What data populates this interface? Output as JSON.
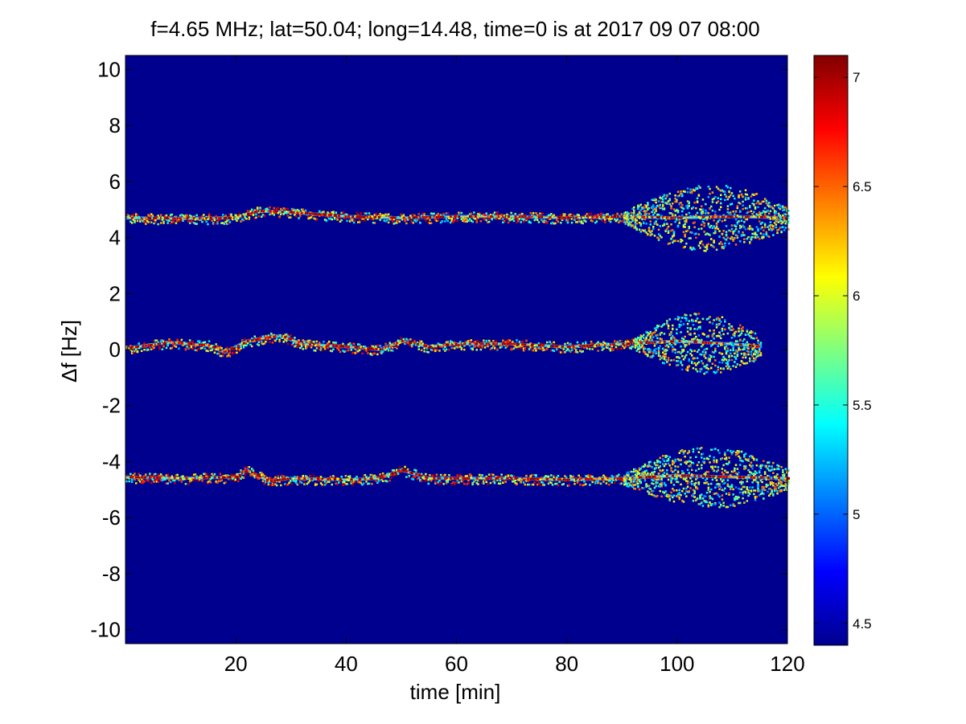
{
  "chart_data": {
    "type": "heatmap",
    "title": "f=4.65 MHz;  lat=50.04; long=14.48, time=0 is at 2017 09 07 08:00",
    "xlabel": "time [min]",
    "ylabel": "Δf [Hz]",
    "xlim": [
      0,
      120
    ],
    "ylim": [
      -10.5,
      10.5
    ],
    "x_ticks": [
      20,
      40,
      60,
      80,
      100,
      120
    ],
    "x_tick_labels": [
      "20",
      "40",
      "60",
      "80",
      "100",
      "120"
    ],
    "y_ticks": [
      10,
      8,
      6,
      4,
      2,
      0,
      -2,
      -4,
      -6,
      -8,
      -10
    ],
    "y_tick_labels": [
      "10",
      "8",
      "6",
      "4",
      "2",
      "0",
      "-2",
      "-4",
      "-6",
      "-8",
      "-10"
    ],
    "colormap": "jet",
    "background_color": "#00008f",
    "colorbar": {
      "clim": [
        4.4,
        7.1
      ],
      "ticks": [
        4.5,
        5,
        5.5,
        6,
        6.5,
        7
      ],
      "tick_labels": [
        "4.5",
        "5",
        "5.5",
        "6",
        "6.5",
        "7"
      ]
    },
    "traces": [
      {
        "center_hz": 4.7,
        "onset_spread_min": 90,
        "max_spread_hz": 1.0,
        "path": [
          [
            0,
            4.7
          ],
          [
            10,
            4.68
          ],
          [
            20,
            4.7
          ],
          [
            24,
            4.95
          ],
          [
            30,
            4.9
          ],
          [
            40,
            4.75
          ],
          [
            50,
            4.7
          ],
          [
            60,
            4.75
          ],
          [
            70,
            4.75
          ],
          [
            80,
            4.7
          ],
          [
            90,
            4.75
          ],
          [
            100,
            4.7
          ],
          [
            110,
            4.75
          ],
          [
            120,
            4.7
          ]
        ]
      },
      {
        "center_hz": 0.1,
        "onset_spread_min": 92,
        "max_spread_hz": 0.9,
        "path": [
          [
            0,
            0.05
          ],
          [
            8,
            0.25
          ],
          [
            15,
            0.15
          ],
          [
            18,
            -0.1
          ],
          [
            22,
            0.3
          ],
          [
            28,
            0.5
          ],
          [
            32,
            0.2
          ],
          [
            40,
            0.1
          ],
          [
            46,
            0.0
          ],
          [
            50,
            0.3
          ],
          [
            55,
            0.1
          ],
          [
            60,
            0.2
          ],
          [
            70,
            0.2
          ],
          [
            80,
            0.1
          ],
          [
            90,
            0.2
          ],
          [
            100,
            0.3
          ],
          [
            110,
            0.2
          ],
          [
            115,
            0.1
          ]
        ]
      },
      {
        "center_hz": -4.6,
        "onset_spread_min": 90,
        "max_spread_hz": 0.9,
        "path": [
          [
            0,
            -4.55
          ],
          [
            10,
            -4.6
          ],
          [
            20,
            -4.55
          ],
          [
            22,
            -4.3
          ],
          [
            26,
            -4.7
          ],
          [
            30,
            -4.6
          ],
          [
            40,
            -4.65
          ],
          [
            46,
            -4.6
          ],
          [
            50,
            -4.3
          ],
          [
            55,
            -4.6
          ],
          [
            60,
            -4.6
          ],
          [
            70,
            -4.6
          ],
          [
            80,
            -4.65
          ],
          [
            90,
            -4.6
          ],
          [
            100,
            -4.5
          ],
          [
            110,
            -4.55
          ],
          [
            120,
            -4.6
          ]
        ]
      }
    ]
  }
}
